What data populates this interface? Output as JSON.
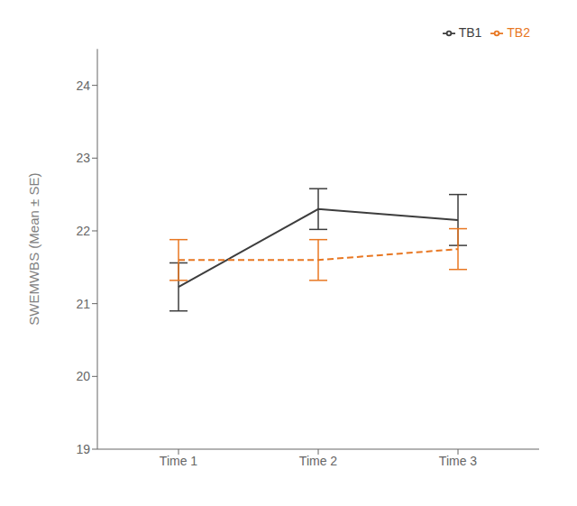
{
  "chart_data": {
    "type": "line",
    "categories": [
      "Time 1",
      "Time 2",
      "Time 3"
    ],
    "series": [
      {
        "name": "TB1",
        "color": "#3d3d3d",
        "values": [
          21.23,
          22.3,
          22.15
        ],
        "errors": [
          0.33,
          0.28,
          0.35
        ],
        "line_style": "solid"
      },
      {
        "name": "TB2",
        "color": "#E87722",
        "values": [
          21.6,
          21.6,
          21.75
        ],
        "errors": [
          0.28,
          0.28,
          0.28
        ],
        "line_style": "dashed"
      }
    ],
    "ylabel": "SWEMWBS (Mean ± SE)",
    "ylim": [
      19,
      24.5
    ],
    "yticks": [
      19,
      20,
      21,
      22,
      23,
      24
    ],
    "legend": "upper right",
    "grid": false
  }
}
